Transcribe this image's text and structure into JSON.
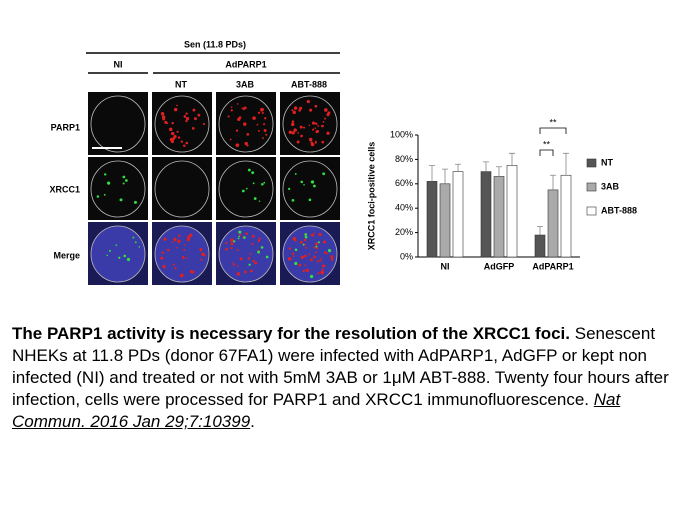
{
  "figure": {
    "header": "Sen (11.8 PDs)",
    "groups": [
      "NI",
      "AdPARP1"
    ],
    "columns": [
      "NT",
      "3AB",
      "ABT-888"
    ],
    "rows": [
      "PARP1",
      "XRCC1",
      "Merge"
    ]
  },
  "chart_data": {
    "type": "bar",
    "ylabel": "XRCC1 foci-positive cells",
    "categories": [
      "NI",
      "AdGFP",
      "AdPARP1"
    ],
    "series": [
      {
        "name": "NT",
        "color": "#555555",
        "values": [
          62,
          70,
          18
        ],
        "errors": [
          13,
          8,
          7
        ]
      },
      {
        "name": "3AB",
        "color": "#aaaaaa",
        "values": [
          60,
          66,
          55
        ],
        "errors": [
          12,
          8,
          12
        ]
      },
      {
        "name": "ABT-888",
        "color": "#ffffff",
        "values": [
          70,
          75,
          67
        ],
        "errors": [
          6,
          10,
          18
        ]
      }
    ],
    "ylim": [
      0,
      100
    ],
    "yticks": [
      {
        "value": 0,
        "label": "0%"
      },
      {
        "value": 20,
        "label": "20%"
      },
      {
        "value": 40,
        "label": "40%"
      },
      {
        "value": 60,
        "label": "60%"
      },
      {
        "value": 80,
        "label": "80%"
      },
      {
        "value": 100,
        "label": "100%"
      }
    ],
    "annotations": [
      "**",
      "**"
    ]
  },
  "caption": {
    "title": "The PARP1 activity is necessary for the resolution of the XRCC1 foci.",
    "body": "Senescent NHEKs at 11.8 PDs (donor 67FA1) were infected with AdPARP1, AdGFP or kept non infected (NI) and treated or not with 5mM 3AB or 1μM ABT-888. Twenty four hours after infection, cells were processed for PARP1 and XRCC1 immunofluorescence.",
    "citation": "Nat Commun. 2016 Jan 29;7:10399",
    "end": "."
  }
}
